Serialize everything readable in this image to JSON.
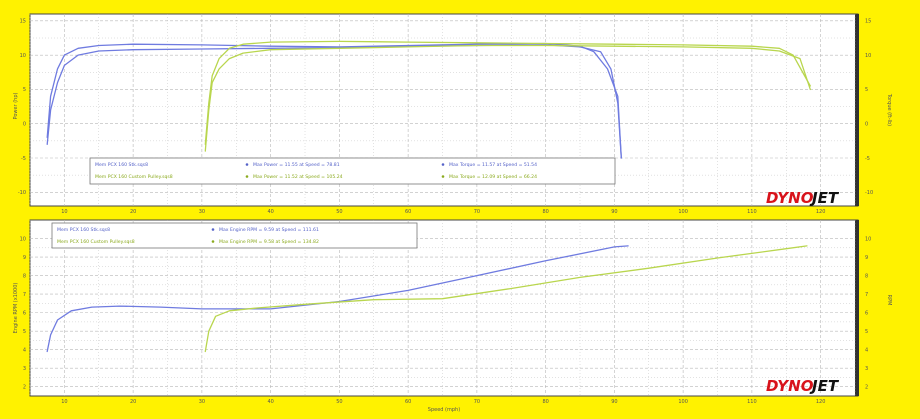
{
  "colors": {
    "background": "#FFF200",
    "panel_bg": "#FFFFFF",
    "grid": "#B8B8B8",
    "blue_series": "#6F7BE0",
    "green_series": "#B9D64E",
    "logo_red": "#D8131B",
    "logo_black": "#111111"
  },
  "logo": {
    "text_red": "DYNO",
    "text_black": "JET"
  },
  "x_axis": {
    "label": "Speed (mph)"
  },
  "chart_data": [
    {
      "type": "line",
      "title": "",
      "xlabel": "Speed (mph)",
      "ylabel": "Power (hp)",
      "ylabel_right": "Torque (ft-lb)",
      "xlim": [
        5,
        125
      ],
      "ylim": [
        -12,
        16
      ],
      "x_ticks": [
        10,
        20,
        30,
        40,
        50,
        60,
        70,
        80,
        90,
        100,
        110,
        120
      ],
      "y_ticks": [
        15,
        10,
        5,
        0,
        -5,
        -10
      ],
      "y_ticks_right": [
        15,
        10,
        5,
        0,
        -5,
        -10
      ],
      "grid": true,
      "legend_placement": "bottom-left",
      "legend": [
        {
          "file": "Mem PCX 160 Stk.sqs8",
          "power_note": "Max Power = 11.55 at Speed = 78.81",
          "torque_note": "Max Torque = 11.57 at Speed = 51.54",
          "color": "#6F7BE0"
        },
        {
          "file": "Mem PCX 160 Custom Pulley.sqs8",
          "power_note": "Max Power = 11.52 at Speed = 105.24",
          "torque_note": "Max Torque = 12.09 at Speed = 66.24",
          "color": "#B9D64E"
        }
      ],
      "series": [
        {
          "color": "#6F7BE0",
          "x": [
            7.5,
            8,
            9,
            10,
            12,
            15,
            20,
            30,
            40,
            50,
            60,
            70,
            80,
            85,
            88,
            89.5,
            90.5,
            91
          ],
          "y": [
            -3,
            2,
            6,
            8.5,
            10,
            10.6,
            10.8,
            10.9,
            11.0,
            11.1,
            11.3,
            11.4,
            11.5,
            11.2,
            10.5,
            8,
            3,
            -5
          ]
        },
        {
          "color": "#6F7BE0",
          "x": [
            7.5,
            8,
            9,
            10,
            12,
            15,
            20,
            30,
            40,
            50,
            60,
            70,
            80,
            85,
            87,
            89,
            90.5,
            91
          ],
          "y": [
            -2,
            4,
            8,
            10,
            11,
            11.4,
            11.6,
            11.5,
            11.3,
            11.2,
            11.4,
            11.6,
            11.7,
            11.3,
            10.5,
            8,
            4,
            -5
          ]
        },
        {
          "color": "#B9D64E",
          "x": [
            30.5,
            31,
            31.5,
            32.5,
            34,
            36,
            40,
            50,
            60,
            70,
            80,
            90,
            100,
            110,
            114,
            117,
            118.5
          ],
          "y": [
            -4,
            2,
            6,
            8,
            9.5,
            10.3,
            10.8,
            11.0,
            11.2,
            11.4,
            11.4,
            11.3,
            11.2,
            11.0,
            10.6,
            9.5,
            5
          ]
        },
        {
          "color": "#B9D64E",
          "x": [
            30.5,
            31,
            31.5,
            32.5,
            34,
            36,
            40,
            50,
            60,
            70,
            80,
            90,
            100,
            110,
            114,
            116,
            118.5
          ],
          "y": [
            -3,
            3,
            7,
            9.5,
            11,
            11.6,
            11.9,
            12.0,
            11.9,
            11.8,
            11.7,
            11.6,
            11.5,
            11.3,
            11.0,
            10.0,
            5.5
          ]
        }
      ]
    },
    {
      "type": "line",
      "title": "",
      "xlabel": "Speed (mph)",
      "ylabel": "Engine RPM (x1000)",
      "ylabel_right": "RPM",
      "xlim": [
        5,
        125
      ],
      "ylim": [
        1.5,
        11
      ],
      "x_ticks": [
        10,
        20,
        30,
        40,
        50,
        60,
        70,
        80,
        90,
        100,
        110,
        120
      ],
      "y_ticks": [
        10,
        9,
        8,
        7,
        6,
        5,
        4,
        3,
        2
      ],
      "y_ticks_right": [
        10,
        9,
        8,
        7,
        6,
        5,
        4,
        3,
        2
      ],
      "grid": true,
      "legend_placement": "top-left",
      "legend": [
        {
          "file": "Mem PCX 160 Stk.sqs8",
          "rpm_note": "Max Engine RPM = 9.59 at Speed = 111.61",
          "color": "#6F7BE0"
        },
        {
          "file": "Mem PCX 160 Custom Pulley.sqs8",
          "rpm_note": "Max Engine RPM = 9.58 at Speed = 134.82",
          "color": "#B9D64E"
        }
      ],
      "series": [
        {
          "color": "#6F7BE0",
          "x": [
            7.5,
            8,
            9,
            11,
            14,
            18,
            24,
            30,
            40,
            50,
            60,
            70,
            80,
            90,
            92
          ],
          "y": [
            3.9,
            4.8,
            5.6,
            6.1,
            6.3,
            6.35,
            6.3,
            6.2,
            6.2,
            6.6,
            7.2,
            8.0,
            8.8,
            9.55,
            9.6
          ]
        },
        {
          "color": "#B9D64E",
          "x": [
            30.5,
            31,
            32,
            34,
            38,
            45,
            55,
            65,
            75,
            85,
            95,
            105,
            115,
            118
          ],
          "y": [
            3.9,
            5.0,
            5.8,
            6.1,
            6.25,
            6.45,
            6.7,
            6.75,
            7.3,
            7.9,
            8.4,
            8.95,
            9.45,
            9.6
          ]
        }
      ]
    }
  ]
}
